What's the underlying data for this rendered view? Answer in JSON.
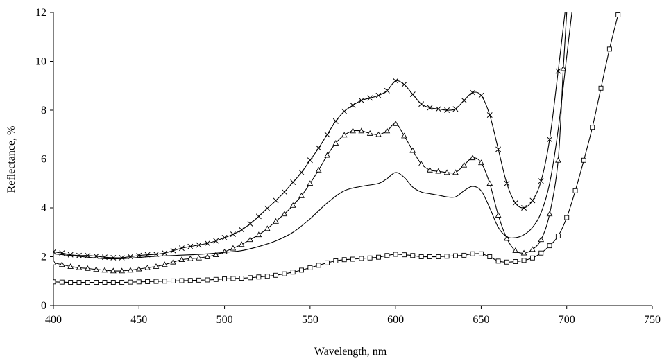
{
  "chart_data": {
    "type": "line",
    "title": "",
    "xlabel": "Wavelength, nm",
    "ylabel": "Reflectance, %",
    "xlim": [
      400,
      750
    ],
    "ylim": [
      0,
      12
    ],
    "x_ticks": [
      "400",
      "450",
      "500",
      "550",
      "600",
      "650",
      "700",
      "750"
    ],
    "y_ticks": [
      "0",
      "2",
      "4",
      "6",
      "8",
      "10",
      "12"
    ],
    "grid": false,
    "legend": "none",
    "series": [
      {
        "marker": "x",
        "points": [
          [
            400,
            2.2
          ],
          [
            405,
            2.15
          ],
          [
            410,
            2.08
          ],
          [
            415,
            2.05
          ],
          [
            420,
            2.05
          ],
          [
            425,
            2.02
          ],
          [
            430,
            1.98
          ],
          [
            435,
            1.96
          ],
          [
            440,
            1.96
          ],
          [
            445,
            2.0
          ],
          [
            450,
            2.05
          ],
          [
            455,
            2.08
          ],
          [
            460,
            2.1
          ],
          [
            465,
            2.15
          ],
          [
            470,
            2.25
          ],
          [
            475,
            2.35
          ],
          [
            480,
            2.42
          ],
          [
            485,
            2.48
          ],
          [
            490,
            2.55
          ],
          [
            495,
            2.65
          ],
          [
            500,
            2.78
          ],
          [
            505,
            2.92
          ],
          [
            510,
            3.1
          ],
          [
            515,
            3.35
          ],
          [
            520,
            3.65
          ],
          [
            525,
            3.98
          ],
          [
            530,
            4.3
          ],
          [
            535,
            4.65
          ],
          [
            540,
            5.05
          ],
          [
            545,
            5.45
          ],
          [
            550,
            5.95
          ],
          [
            555,
            6.45
          ],
          [
            560,
            7.0
          ],
          [
            565,
            7.55
          ],
          [
            570,
            7.95
          ],
          [
            575,
            8.2
          ],
          [
            580,
            8.4
          ],
          [
            585,
            8.5
          ],
          [
            590,
            8.6
          ],
          [
            595,
            8.8
          ],
          [
            600,
            9.2
          ],
          [
            605,
            9.05
          ],
          [
            610,
            8.65
          ],
          [
            615,
            8.25
          ],
          [
            620,
            8.1
          ],
          [
            625,
            8.05
          ],
          [
            630,
            8.0
          ],
          [
            635,
            8.05
          ],
          [
            640,
            8.4
          ],
          [
            645,
            8.72
          ],
          [
            650,
            8.6
          ],
          [
            655,
            7.8
          ],
          [
            660,
            6.4
          ],
          [
            665,
            5.0
          ],
          [
            670,
            4.2
          ],
          [
            675,
            4.0
          ],
          [
            680,
            4.3
          ],
          [
            685,
            5.1
          ],
          [
            690,
            6.8
          ],
          [
            695,
            9.6
          ],
          [
            699,
            12
          ]
        ]
      },
      {
        "marker": "triangle",
        "points": [
          [
            400,
            1.75
          ],
          [
            405,
            1.68
          ],
          [
            410,
            1.6
          ],
          [
            415,
            1.55
          ],
          [
            420,
            1.52
          ],
          [
            425,
            1.48
          ],
          [
            430,
            1.45
          ],
          [
            435,
            1.42
          ],
          [
            440,
            1.42
          ],
          [
            445,
            1.45
          ],
          [
            450,
            1.5
          ],
          [
            455,
            1.55
          ],
          [
            460,
            1.6
          ],
          [
            465,
            1.68
          ],
          [
            470,
            1.78
          ],
          [
            475,
            1.88
          ],
          [
            480,
            1.92
          ],
          [
            485,
            1.95
          ],
          [
            490,
            2.0
          ],
          [
            495,
            2.08
          ],
          [
            500,
            2.2
          ],
          [
            505,
            2.35
          ],
          [
            510,
            2.5
          ],
          [
            515,
            2.7
          ],
          [
            520,
            2.9
          ],
          [
            525,
            3.15
          ],
          [
            530,
            3.45
          ],
          [
            535,
            3.75
          ],
          [
            540,
            4.1
          ],
          [
            545,
            4.5
          ],
          [
            550,
            5.0
          ],
          [
            555,
            5.55
          ],
          [
            560,
            6.15
          ],
          [
            565,
            6.65
          ],
          [
            570,
            6.98
          ],
          [
            575,
            7.15
          ],
          [
            580,
            7.15
          ],
          [
            585,
            7.05
          ],
          [
            590,
            7.0
          ],
          [
            595,
            7.15
          ],
          [
            600,
            7.45
          ],
          [
            605,
            6.95
          ],
          [
            610,
            6.35
          ],
          [
            615,
            5.8
          ],
          [
            620,
            5.55
          ],
          [
            625,
            5.5
          ],
          [
            630,
            5.45
          ],
          [
            635,
            5.45
          ],
          [
            640,
            5.75
          ],
          [
            645,
            6.05
          ],
          [
            650,
            5.85
          ],
          [
            655,
            5.0
          ],
          [
            660,
            3.7
          ],
          [
            665,
            2.75
          ],
          [
            670,
            2.25
          ],
          [
            675,
            2.15
          ],
          [
            680,
            2.3
          ],
          [
            685,
            2.7
          ],
          [
            690,
            3.75
          ],
          [
            695,
            5.95
          ],
          [
            698,
            9.7
          ],
          [
            700,
            12
          ]
        ]
      },
      {
        "marker": "none",
        "points": [
          [
            400,
            2.12
          ],
          [
            410,
            2.05
          ],
          [
            420,
            1.98
          ],
          [
            430,
            1.92
          ],
          [
            440,
            1.92
          ],
          [
            450,
            1.97
          ],
          [
            460,
            2.02
          ],
          [
            470,
            2.05
          ],
          [
            480,
            2.08
          ],
          [
            490,
            2.12
          ],
          [
            500,
            2.18
          ],
          [
            510,
            2.25
          ],
          [
            520,
            2.42
          ],
          [
            530,
            2.65
          ],
          [
            540,
            3.0
          ],
          [
            550,
            3.55
          ],
          [
            560,
            4.2
          ],
          [
            570,
            4.7
          ],
          [
            580,
            4.88
          ],
          [
            590,
            5.0
          ],
          [
            595,
            5.2
          ],
          [
            600,
            5.45
          ],
          [
            605,
            5.25
          ],
          [
            610,
            4.85
          ],
          [
            615,
            4.65
          ],
          [
            620,
            4.58
          ],
          [
            625,
            4.52
          ],
          [
            630,
            4.45
          ],
          [
            635,
            4.45
          ],
          [
            640,
            4.7
          ],
          [
            645,
            4.88
          ],
          [
            650,
            4.7
          ],
          [
            655,
            4.0
          ],
          [
            660,
            3.2
          ],
          [
            665,
            2.82
          ],
          [
            670,
            2.78
          ],
          [
            675,
            2.9
          ],
          [
            680,
            3.2
          ],
          [
            685,
            3.8
          ],
          [
            690,
            5.0
          ],
          [
            695,
            7.2
          ],
          [
            700,
            10.2
          ],
          [
            703,
            12
          ]
        ]
      },
      {
        "marker": "square",
        "points": [
          [
            400,
            0.97
          ],
          [
            405,
            0.96
          ],
          [
            410,
            0.95
          ],
          [
            415,
            0.95
          ],
          [
            420,
            0.95
          ],
          [
            425,
            0.95
          ],
          [
            430,
            0.95
          ],
          [
            435,
            0.95
          ],
          [
            440,
            0.95
          ],
          [
            445,
            0.96
          ],
          [
            450,
            0.97
          ],
          [
            455,
            0.98
          ],
          [
            460,
            0.99
          ],
          [
            465,
            1.0
          ],
          [
            470,
            1.01
          ],
          [
            475,
            1.02
          ],
          [
            480,
            1.03
          ],
          [
            485,
            1.04
          ],
          [
            490,
            1.05
          ],
          [
            495,
            1.07
          ],
          [
            500,
            1.09
          ],
          [
            505,
            1.11
          ],
          [
            510,
            1.12
          ],
          [
            515,
            1.14
          ],
          [
            520,
            1.17
          ],
          [
            525,
            1.2
          ],
          [
            530,
            1.24
          ],
          [
            535,
            1.3
          ],
          [
            540,
            1.37
          ],
          [
            545,
            1.45
          ],
          [
            550,
            1.55
          ],
          [
            555,
            1.65
          ],
          [
            560,
            1.75
          ],
          [
            565,
            1.83
          ],
          [
            570,
            1.88
          ],
          [
            575,
            1.9
          ],
          [
            580,
            1.93
          ],
          [
            585,
            1.95
          ],
          [
            590,
            1.98
          ],
          [
            595,
            2.05
          ],
          [
            600,
            2.1
          ],
          [
            605,
            2.08
          ],
          [
            610,
            2.05
          ],
          [
            615,
            2.0
          ],
          [
            620,
            2.0
          ],
          [
            625,
            2.0
          ],
          [
            630,
            2.02
          ],
          [
            635,
            2.04
          ],
          [
            640,
            2.06
          ],
          [
            645,
            2.12
          ],
          [
            650,
            2.12
          ],
          [
            655,
            2.0
          ],
          [
            660,
            1.82
          ],
          [
            665,
            1.78
          ],
          [
            670,
            1.8
          ],
          [
            675,
            1.85
          ],
          [
            680,
            1.95
          ],
          [
            685,
            2.15
          ],
          [
            690,
            2.45
          ],
          [
            695,
            2.85
          ],
          [
            700,
            3.6
          ],
          [
            705,
            4.7
          ],
          [
            710,
            5.95
          ],
          [
            715,
            7.3
          ],
          [
            720,
            8.9
          ],
          [
            725,
            10.5
          ],
          [
            730,
            11.9
          ]
        ]
      }
    ]
  }
}
